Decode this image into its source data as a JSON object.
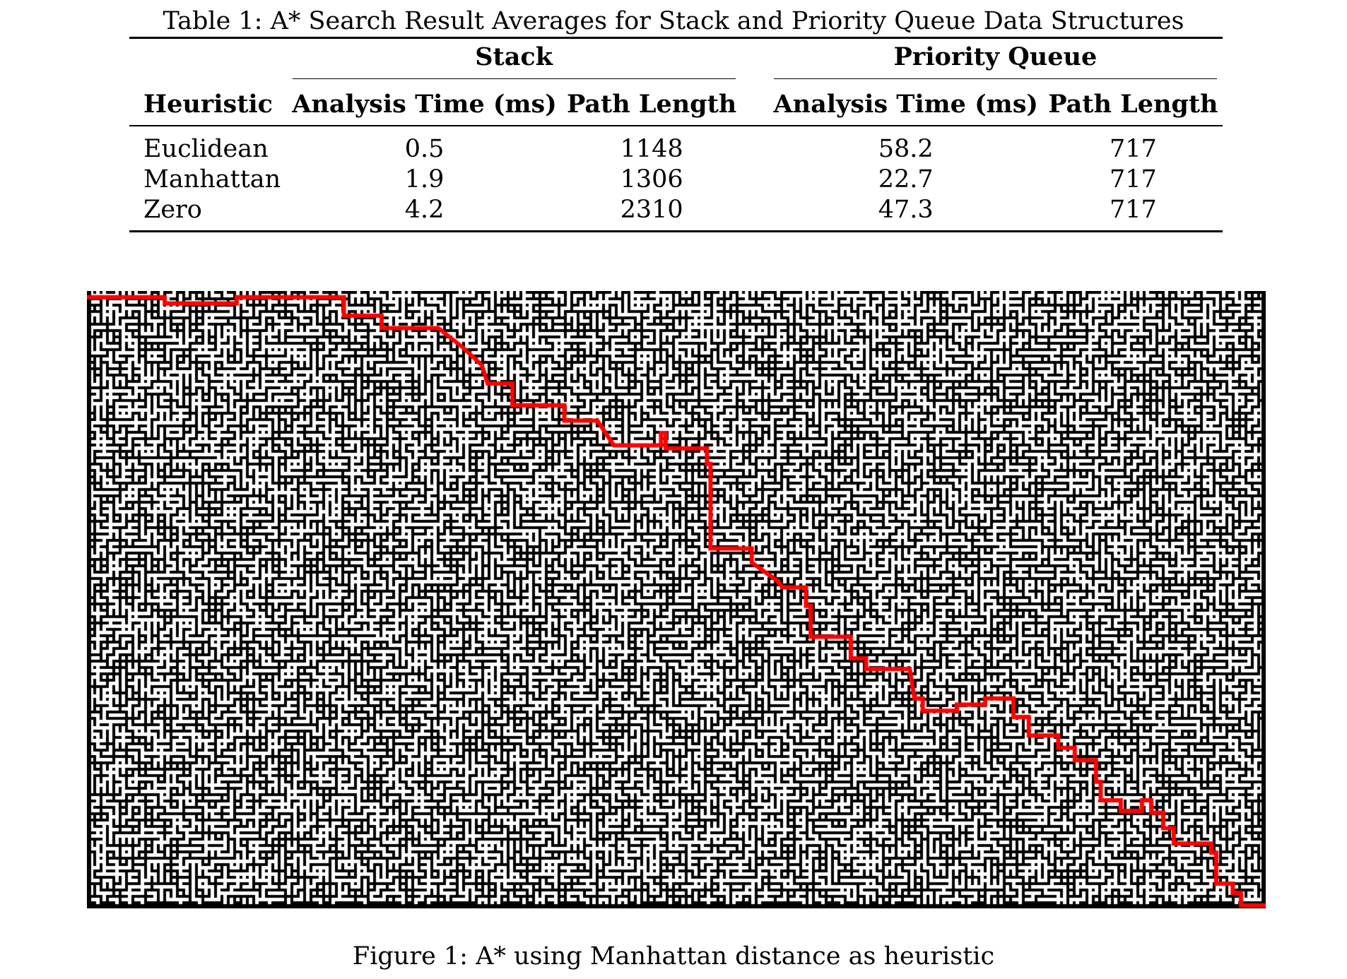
{
  "table": {
    "caption": "Table 1: A* Search Result Averages for Stack and Priority Queue Data Structures",
    "group_headers": [
      "Stack",
      "Priority Queue"
    ],
    "columns": [
      "Heuristic",
      "Analysis Time (ms)",
      "Path Length",
      "Analysis Time (ms)",
      "Path Length"
    ],
    "rows": [
      [
        "Euclidean",
        "0.5",
        "1148",
        "58.2",
        "717"
      ],
      [
        "Manhattan",
        "1.9",
        "1306",
        "22.7",
        "717"
      ],
      [
        "Zero",
        "4.2",
        "2310",
        "47.3",
        "717"
      ]
    ]
  },
  "figure": {
    "caption": "Figure 1: A* using Manhattan distance as heuristic",
    "maze_color": "#000000",
    "path_color": "#ff0000",
    "background_color": "#ffffff"
  }
}
